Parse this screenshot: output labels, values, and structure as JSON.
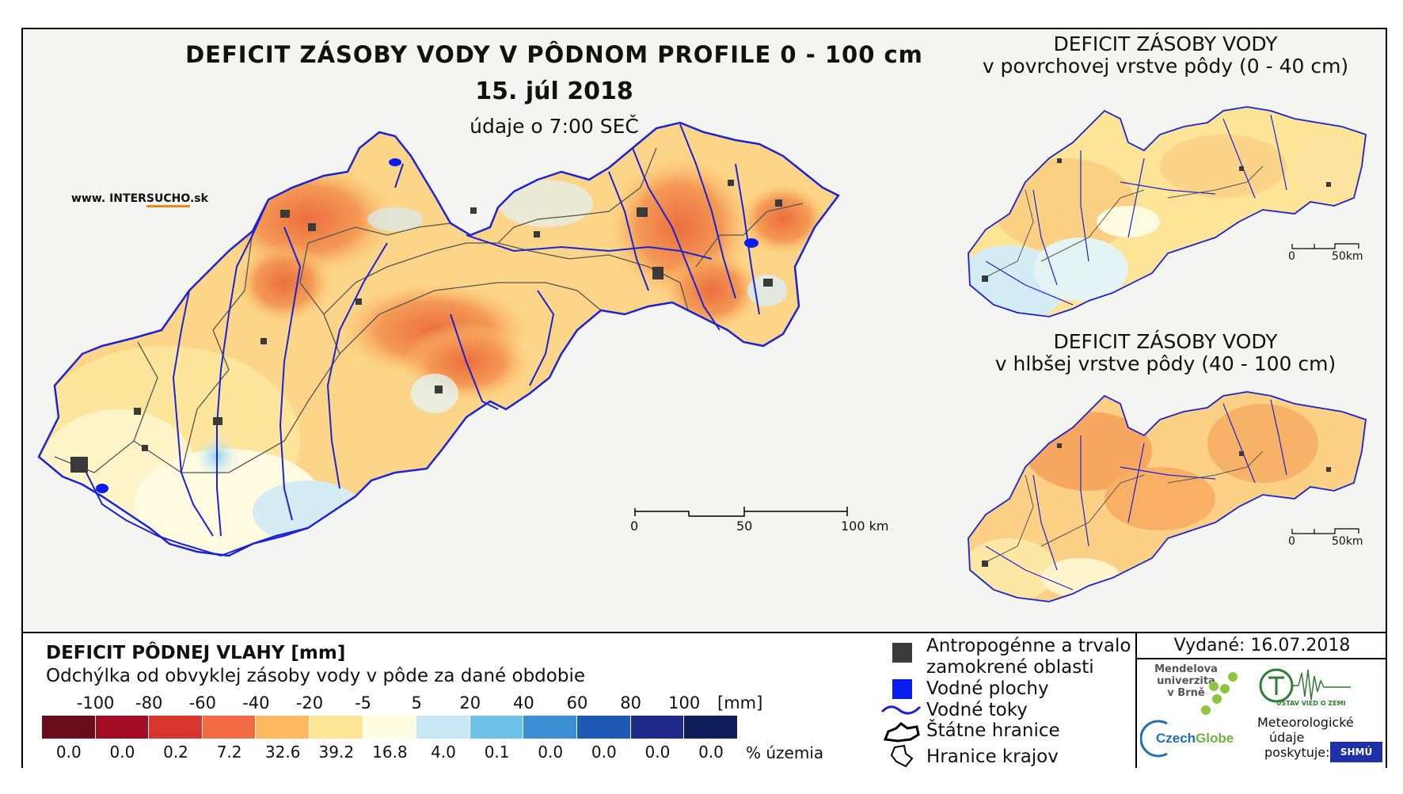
{
  "main_map": {
    "title": "DEFICIT ZÁSOBY VODY V PÔDNOM PROFILE 0 - 100 cm",
    "date": "15. júl 2018",
    "time": "údaje o 7:00 SEČ",
    "website": {
      "prefix": "www. INTER",
      "highlight": "SUCHO",
      "suffix": ".sk"
    },
    "scale": {
      "labels": [
        "0",
        "50",
        "100 km"
      ]
    }
  },
  "side_map_top": {
    "title_line1": "DEFICIT ZÁSOBY VODY",
    "title_line2": "v povrchovej vrstve pôdy (0 - 40 cm)",
    "scale": {
      "labels": [
        "0",
        "50km"
      ]
    }
  },
  "side_map_bottom": {
    "title_line1": "DEFICIT ZÁSOBY VODY",
    "title_line2": "v hlbšej vrstve pôdy (40 - 100 cm)",
    "scale": {
      "labels": [
        "0",
        "50km"
      ]
    }
  },
  "legend": {
    "title": "DEFICIT PÔDNEJ VLAHY [mm]",
    "subtitle": "Odchýlka od obvyklej zásoby vody v pôde za dané obdobie",
    "unit": "[mm]",
    "pct_unit": "% územia",
    "ticks": [
      "-100",
      "-80",
      "-60",
      "-40",
      "-20",
      "-5",
      "5",
      "20",
      "40",
      "60",
      "80",
      "100"
    ],
    "classes": [
      {
        "color": "#6b0c1c",
        "pct": "0.0"
      },
      {
        "color": "#a30d24",
        "pct": "0.0"
      },
      {
        "color": "#d7352d",
        "pct": "0.2"
      },
      {
        "color": "#f26b45",
        "pct": "7.2"
      },
      {
        "color": "#fcb960",
        "pct": "32.6"
      },
      {
        "color": "#fde796",
        "pct": "39.2"
      },
      {
        "color": "#fefde2",
        "pct": "16.8"
      },
      {
        "color": "#c8e6f4",
        "pct": "4.0"
      },
      {
        "color": "#6ec2e8",
        "pct": "0.1"
      },
      {
        "color": "#3b8fd4",
        "pct": "0.0"
      },
      {
        "color": "#1e59b5",
        "pct": "0.0"
      },
      {
        "color": "#1f2a8a",
        "pct": "0.0"
      },
      {
        "color": "#0e1e5b",
        "pct": "0.0"
      }
    ]
  },
  "symbols": {
    "anthropogenic_line1": "Antropogénne a trvalo",
    "anthropogenic_line2": "zamokrené oblasti",
    "water_bodies": "Vodné plochy",
    "streams": "Vodné toky",
    "state_border": "Štátne hranice",
    "region_border": "Hranice krajov"
  },
  "credits": {
    "issued": "Vydané: 16.07.2018",
    "mendel_line1": "Mendelova",
    "mendel_line2": "univerzita",
    "mendel_line3": "v Brně",
    "czechglobe_a": "Czech",
    "czechglobe_b": "Globe",
    "uvoz": "ÚSTAV VIED O ZEMI",
    "meteo_line1": "Meteorologické",
    "meteo_line2": "údaje",
    "meteo_line3": "poskytuje:",
    "shmu": "SHMÚ"
  },
  "colors": {
    "stream": "#1a22d6",
    "water": "#0a1cf0",
    "urban": "#3a3a3a",
    "border": "#000000",
    "region": "#555555",
    "accent_orange": "#e98b1b"
  }
}
